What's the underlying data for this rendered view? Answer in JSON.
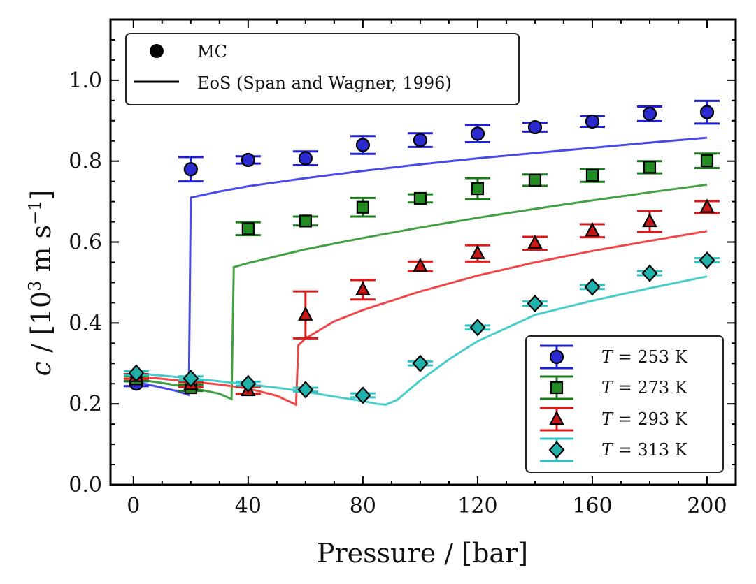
{
  "chart_data": {
    "type": "scatter",
    "xlabel": "Pressure / [bar]",
    "ylabel_parts": {
      "symbol": "c",
      "prefix": " / [10",
      "exp": "3",
      "middle": " m s",
      "exp2": "−1",
      "suffix": "]"
    },
    "xlim": [
      -8,
      210
    ],
    "ylim": [
      0.0,
      1.15
    ],
    "xticks": [
      0,
      40,
      80,
      120,
      160,
      200
    ],
    "yticks": [
      0.0,
      0.2,
      0.4,
      0.6,
      0.8,
      1.0
    ],
    "ytick_labels": [
      "0.0",
      "0.2",
      "0.4",
      "0.6",
      "0.8",
      "1.0"
    ],
    "legend_top": [
      {
        "label": "MC",
        "kind": "marker"
      },
      {
        "label": "EoS (Span and Wagner, 1996)",
        "kind": "line"
      }
    ],
    "series": [
      {
        "name": "T = 253 K",
        "symbol": "T",
        "label_rest": " = 253 K",
        "marker": "circle",
        "color": "#1f1fd6",
        "fill": "#2a2ad0",
        "line_color": "#4a4ae8",
        "mc_x": [
          1,
          20,
          40,
          60,
          80,
          100,
          120,
          140,
          160,
          180,
          200
        ],
        "mc_y": [
          0.25,
          0.78,
          0.803,
          0.807,
          0.84,
          0.852,
          0.868,
          0.884,
          0.898,
          0.917,
          0.921
        ],
        "mc_err": [
          0.006,
          0.03,
          0.009,
          0.017,
          0.022,
          0.017,
          0.021,
          0.011,
          0.013,
          0.018,
          0.028
        ],
        "eos_x": [
          0,
          5,
          10,
          15,
          19.3,
          20,
          30,
          40,
          60,
          80,
          100,
          120,
          140,
          160,
          180,
          200
        ],
        "eos_y": [
          0.255,
          0.248,
          0.24,
          0.232,
          0.222,
          0.71,
          0.725,
          0.738,
          0.758,
          0.776,
          0.792,
          0.807,
          0.82,
          0.833,
          0.846,
          0.858
        ]
      },
      {
        "name": "T = 273 K",
        "symbol": "T",
        "label_rest": " = 273 K",
        "marker": "square",
        "color": "#1a7a1a",
        "fill": "#228b22",
        "line_color": "#44a044",
        "mc_x": [
          1,
          20,
          40,
          60,
          80,
          100,
          120,
          140,
          160,
          180,
          200
        ],
        "mc_y": [
          0.262,
          0.24,
          0.633,
          0.652,
          0.686,
          0.708,
          0.732,
          0.753,
          0.765,
          0.785,
          0.801
        ],
        "mc_err": [
          0.006,
          0.008,
          0.016,
          0.011,
          0.023,
          0.01,
          0.026,
          0.014,
          0.016,
          0.015,
          0.018
        ],
        "eos_x": [
          0,
          10,
          20,
          30,
          34.2,
          35,
          40,
          60,
          80,
          100,
          120,
          140,
          160,
          180,
          200
        ],
        "eos_y": [
          0.262,
          0.252,
          0.24,
          0.225,
          0.212,
          0.538,
          0.548,
          0.582,
          0.61,
          0.636,
          0.66,
          0.682,
          0.703,
          0.723,
          0.742
        ]
      },
      {
        "name": "T = 293 K",
        "symbol": "T",
        "label_rest": " = 293 K",
        "marker": "triangle",
        "color": "#e01818",
        "fill": "#c81818",
        "line_color": "#f04848",
        "mc_x": [
          1,
          20,
          40,
          60,
          80,
          100,
          120,
          140,
          160,
          180,
          200
        ],
        "mc_y": [
          0.268,
          0.248,
          0.233,
          0.42,
          0.482,
          0.54,
          0.572,
          0.597,
          0.628,
          0.651,
          0.686
        ],
        "mc_err": [
          0.006,
          0.006,
          0.008,
          0.058,
          0.024,
          0.012,
          0.02,
          0.016,
          0.016,
          0.026,
          0.015
        ],
        "eos_x": [
          0,
          10,
          20,
          30,
          40,
          50,
          56.7,
          57.5,
          60,
          70,
          80,
          100,
          120,
          140,
          160,
          180,
          200
        ],
        "eos_y": [
          0.268,
          0.262,
          0.255,
          0.248,
          0.238,
          0.22,
          0.198,
          0.345,
          0.362,
          0.404,
          0.432,
          0.478,
          0.517,
          0.55,
          0.578,
          0.603,
          0.627
        ]
      },
      {
        "name": "T = 313 K",
        "symbol": "T",
        "label_rest": " = 313 K",
        "marker": "diamond",
        "color": "#2ec4c4",
        "fill": "#20b2aa",
        "line_color": "#48cccc",
        "mc_x": [
          1,
          20,
          40,
          60,
          80,
          100,
          120,
          140,
          160,
          180,
          200
        ],
        "mc_y": [
          0.276,
          0.263,
          0.25,
          0.235,
          0.221,
          0.3,
          0.389,
          0.448,
          0.489,
          0.523,
          0.555
        ],
        "mc_err": [
          0.005,
          0.005,
          0.005,
          0.005,
          0.005,
          0.005,
          0.005,
          0.005,
          0.005,
          0.005,
          0.005
        ],
        "eos_x": [
          0,
          10,
          20,
          30,
          40,
          50,
          60,
          70,
          80,
          85,
          88,
          92,
          100,
          110,
          120,
          140,
          160,
          180,
          200
        ],
        "eos_y": [
          0.276,
          0.27,
          0.263,
          0.256,
          0.248,
          0.24,
          0.23,
          0.218,
          0.207,
          0.2,
          0.198,
          0.21,
          0.258,
          0.31,
          0.355,
          0.42,
          0.455,
          0.486,
          0.515
        ]
      }
    ]
  }
}
